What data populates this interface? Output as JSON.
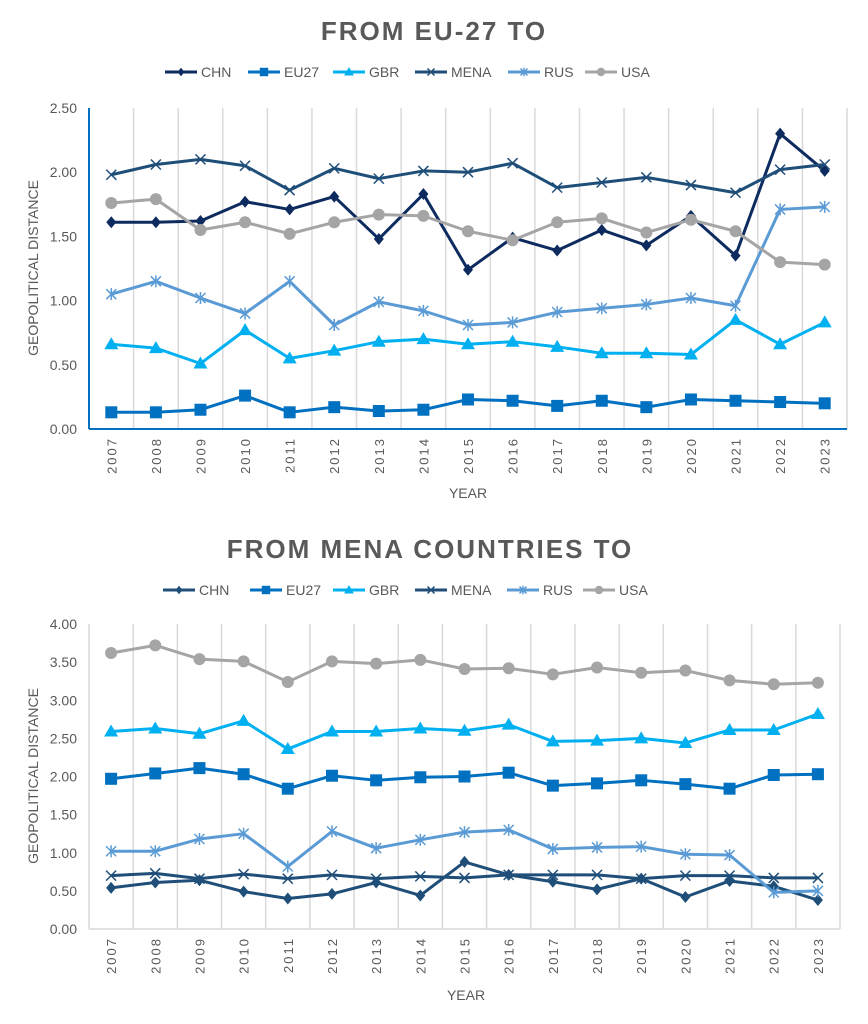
{
  "chart_data": [
    {
      "type": "line",
      "title": "FROM EU-27 TO",
      "xlabel": "YEAR",
      "ylabel": "GEOPOLITICAL DISTANCE",
      "ylim": [
        0,
        2.5
      ],
      "yticks": [
        "0.00",
        "0.50",
        "1.00",
        "1.50",
        "2.00",
        "2.50"
      ],
      "grid": "vertical",
      "legend": "top",
      "axis_color": "#0070c0",
      "categories": [
        "2007",
        "2008",
        "2009",
        "2010",
        "2011",
        "2012",
        "2013",
        "2014",
        "2015",
        "2016",
        "2017",
        "2018",
        "2019",
        "2020",
        "2021",
        "2022",
        "2023"
      ],
      "series": [
        {
          "name": "CHN",
          "color": "#0d2b5e",
          "marker": "diamond",
          "values": [
            1.61,
            1.61,
            1.62,
            1.77,
            1.71,
            1.81,
            1.48,
            1.83,
            1.24,
            1.49,
            1.39,
            1.55,
            1.43,
            1.66,
            1.35,
            2.3,
            2.01
          ]
        },
        {
          "name": "EU27",
          "color": "#0070c0",
          "marker": "square",
          "values": [
            0.13,
            0.13,
            0.15,
            0.26,
            0.13,
            0.17,
            0.14,
            0.15,
            0.23,
            0.22,
            0.18,
            0.22,
            0.17,
            0.23,
            0.22,
            0.21,
            0.2
          ]
        },
        {
          "name": "GBR",
          "color": "#00b0f0",
          "marker": "triangle",
          "values": [
            0.66,
            0.63,
            0.51,
            0.77,
            0.55,
            0.61,
            0.68,
            0.7,
            0.66,
            0.68,
            0.64,
            0.59,
            0.59,
            0.58,
            0.85,
            0.66,
            0.83
          ]
        },
        {
          "name": "MENA",
          "color": "#1f4e79",
          "marker": "x",
          "values": [
            1.98,
            2.06,
            2.1,
            2.05,
            1.86,
            2.03,
            1.95,
            2.01,
            2.0,
            2.07,
            1.88,
            1.92,
            1.96,
            1.9,
            1.84,
            2.02,
            2.06
          ]
        },
        {
          "name": "RUS",
          "color": "#5b9bd5",
          "marker": "asterisk",
          "values": [
            1.05,
            1.15,
            1.02,
            0.9,
            1.15,
            0.81,
            0.99,
            0.92,
            0.81,
            0.83,
            0.91,
            0.94,
            0.97,
            1.02,
            0.96,
            1.71,
            1.73
          ]
        },
        {
          "name": "USA",
          "color": "#a5a5a5",
          "marker": "circle",
          "values": [
            1.76,
            1.79,
            1.55,
            1.61,
            1.52,
            1.61,
            1.67,
            1.66,
            1.54,
            1.47,
            1.61,
            1.64,
            1.53,
            1.63,
            1.54,
            1.3,
            1.28
          ]
        }
      ]
    },
    {
      "type": "line",
      "title": "FROM MENA COUNTRIES TO",
      "xlabel": "YEAR",
      "ylabel": "GEOPOLITICAL DISTANCE",
      "ylim": [
        0,
        4
      ],
      "yticks": [
        "0.00",
        "0.50",
        "1.00",
        "1.50",
        "2.00",
        "2.50",
        "3.00",
        "3.50",
        "4.00"
      ],
      "grid": "vertical",
      "legend": "top",
      "axis_color": "#d9d9d9",
      "categories": [
        "2007",
        "2008",
        "2009",
        "2010",
        "2011",
        "2012",
        "2013",
        "2014",
        "2015",
        "2016",
        "2017",
        "2018",
        "2019",
        "2020",
        "2021",
        "2022",
        "2023"
      ],
      "series": [
        {
          "name": "CHN",
          "color": "#1f4e79",
          "marker": "diamond",
          "values": [
            0.54,
            0.61,
            0.64,
            0.49,
            0.4,
            0.46,
            0.61,
            0.44,
            0.88,
            0.71,
            0.62,
            0.52,
            0.66,
            0.42,
            0.63,
            0.56,
            0.38
          ]
        },
        {
          "name": "EU27",
          "color": "#0070c0",
          "marker": "square",
          "values": [
            1.97,
            2.04,
            2.11,
            2.03,
            1.84,
            2.01,
            1.95,
            1.99,
            2.0,
            2.05,
            1.88,
            1.91,
            1.95,
            1.9,
            1.84,
            2.02,
            2.03
          ]
        },
        {
          "name": "GBR",
          "color": "#00b0f0",
          "marker": "triangle",
          "values": [
            2.59,
            2.63,
            2.56,
            2.73,
            2.36,
            2.59,
            2.59,
            2.63,
            2.6,
            2.68,
            2.46,
            2.47,
            2.5,
            2.44,
            2.61,
            2.61,
            2.82
          ]
        },
        {
          "name": "MENA",
          "color": "#1f4e79",
          "marker": "x",
          "values": [
            0.7,
            0.73,
            0.66,
            0.72,
            0.66,
            0.71,
            0.66,
            0.69,
            0.67,
            0.71,
            0.71,
            0.71,
            0.66,
            0.7,
            0.7,
            0.67,
            0.67
          ]
        },
        {
          "name": "RUS",
          "color": "#5b9bd5",
          "marker": "asterisk",
          "values": [
            1.02,
            1.02,
            1.18,
            1.25,
            0.82,
            1.28,
            1.06,
            1.17,
            1.27,
            1.3,
            1.05,
            1.07,
            1.08,
            0.98,
            0.97,
            0.48,
            0.5
          ]
        },
        {
          "name": "USA",
          "color": "#a5a5a5",
          "marker": "circle",
          "values": [
            3.62,
            3.72,
            3.54,
            3.51,
            3.24,
            3.51,
            3.48,
            3.53,
            3.41,
            3.42,
            3.34,
            3.43,
            3.36,
            3.39,
            3.26,
            3.21,
            3.23
          ]
        }
      ]
    }
  ]
}
